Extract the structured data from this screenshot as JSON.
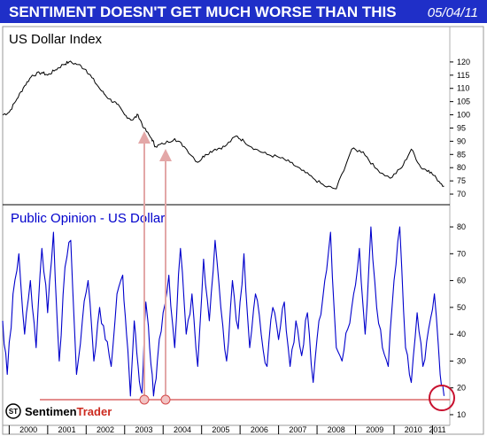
{
  "banner": {
    "title": "SENTIMENT DOESN'T GET MUCH WORSE THAN THIS",
    "date": "05/04/11",
    "background": "#1f2fc8"
  },
  "logo": {
    "prefix": "Sentimen",
    "suffix": "Trader",
    "mark": "ST",
    "suffix_color": "#cc2a1f"
  },
  "colors": {
    "dollar_line": "#000000",
    "opinion_line": "#0000cc",
    "arrow": "#e3a7a7",
    "highlight": "#d44a4a",
    "circle": "#c8102e"
  },
  "chart_data": [
    {
      "type": "line",
      "title": "US Dollar Index",
      "ylim": [
        68,
        125
      ],
      "yticks": [
        70,
        75,
        80,
        85,
        90,
        95,
        100,
        105,
        110,
        115,
        120
      ],
      "x_years": [
        "2000",
        "2001",
        "2002",
        "2003",
        "2004",
        "2005",
        "2006",
        "2007",
        "2008",
        "2009",
        "2010",
        "2011"
      ],
      "series": [
        {
          "x": [
            1999.83,
            2000.0,
            2000.2,
            2000.4,
            2000.6,
            2000.85,
            2001.0,
            2001.2,
            2001.4,
            2001.55,
            2001.8,
            2002.0,
            2002.15,
            2002.4,
            2002.6,
            2002.8,
            2003.0,
            2003.2,
            2003.35,
            2003.5,
            2003.7,
            2003.8,
            2004.0,
            2004.3,
            2004.55,
            2004.9,
            2005.1,
            2005.35,
            2005.6,
            2005.9,
            2006.1,
            2006.4,
            2006.7,
            2007.0,
            2007.3,
            2007.6,
            2007.9,
            2008.2,
            2008.5,
            2008.9,
            2009.2,
            2009.5,
            2009.9,
            2010.2,
            2010.45,
            2010.7,
            2010.9,
            2011.1,
            2011.3
          ],
          "y": [
            100,
            101,
            106,
            111,
            115,
            116,
            115,
            117,
            119,
            120,
            119,
            117,
            114,
            109,
            106,
            104,
            100,
            98,
            100,
            95,
            91,
            88,
            89,
            91,
            88,
            82,
            85,
            87,
            88,
            92,
            90,
            87,
            85,
            84,
            82,
            79,
            76,
            73,
            72,
            87,
            86,
            80,
            76,
            80,
            87,
            80,
            79,
            76,
            73
          ]
        }
      ]
    },
    {
      "type": "line",
      "title": "Public Opinion - US Dollar",
      "ylim": [
        8,
        82
      ],
      "yticks": [
        10,
        20,
        30,
        40,
        50,
        60,
        70,
        80
      ],
      "x_years": [
        "2000",
        "2001",
        "2002",
        "2003",
        "2004",
        "2005",
        "2006",
        "2007",
        "2008",
        "2009",
        "2010",
        "2011"
      ],
      "series": [
        {
          "x": [
            1999.83,
            1999.95,
            2000.1,
            2000.25,
            2000.4,
            2000.55,
            2000.7,
            2000.85,
            2001.0,
            2001.15,
            2001.3,
            2001.45,
            2001.6,
            2001.75,
            2001.9,
            2002.05,
            2002.2,
            2002.35,
            2002.5,
            2002.65,
            2002.8,
            2002.95,
            2003.05,
            2003.15,
            2003.25,
            2003.35,
            2003.45,
            2003.55,
            2003.65,
            2003.75,
            2003.85,
            2004.0,
            2004.15,
            2004.3,
            2004.45,
            2004.6,
            2004.75,
            2004.9,
            2005.05,
            2005.2,
            2005.35,
            2005.5,
            2005.65,
            2005.8,
            2005.95,
            2006.1,
            2006.25,
            2006.4,
            2006.55,
            2006.7,
            2006.85,
            2007.0,
            2007.15,
            2007.3,
            2007.45,
            2007.6,
            2007.75,
            2007.9,
            2008.05,
            2008.2,
            2008.35,
            2008.5,
            2008.65,
            2008.8,
            2008.95,
            2009.1,
            2009.25,
            2009.4,
            2009.55,
            2009.7,
            2009.85,
            2010.0,
            2010.15,
            2010.3,
            2010.45,
            2010.6,
            2010.75,
            2010.9,
            2011.05,
            2011.2,
            2011.3
          ],
          "y": [
            45,
            25,
            55,
            70,
            40,
            60,
            35,
            72,
            48,
            78,
            30,
            65,
            75,
            25,
            45,
            60,
            30,
            50,
            38,
            28,
            55,
            62,
            40,
            17,
            45,
            28,
            18,
            52,
            35,
            17,
            30,
            48,
            62,
            35,
            72,
            40,
            55,
            28,
            68,
            45,
            75,
            50,
            30,
            60,
            42,
            70,
            35,
            55,
            40,
            28,
            50,
            38,
            52,
            28,
            45,
            32,
            48,
            22,
            45,
            60,
            78,
            35,
            30,
            42,
            55,
            72,
            40,
            80,
            50,
            35,
            28,
            60,
            80,
            35,
            22,
            48,
            28,
            42,
            55,
            25,
            17
          ]
        }
      ]
    }
  ]
}
